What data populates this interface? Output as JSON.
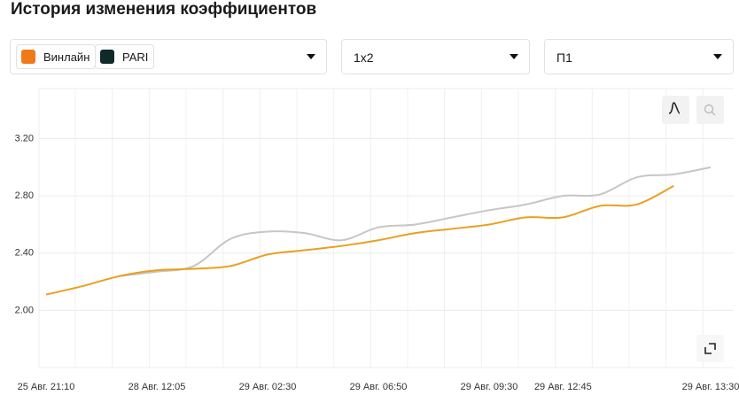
{
  "header": {
    "title": "История изменения коэффициентов"
  },
  "filters": {
    "market": "1x2",
    "outcome": "П1"
  },
  "chart_data": {
    "type": "line",
    "categories": [
      "25 Авг. 21:10",
      null,
      null,
      "28 Авг. 12:05",
      null,
      null,
      "29 Авг. 02:30",
      null,
      null,
      "29 Авг. 06:50",
      null,
      null,
      "29 Авг. 09:30",
      null,
      "29 Авг. 12:45",
      null,
      null,
      null,
      "29 Авг. 13:30"
    ],
    "series": [
      {
        "name": "Винлайн",
        "color": "#e9a021",
        "values": [
          2.11,
          2.17,
          2.24,
          2.28,
          2.29,
          2.31,
          2.39,
          2.42,
          2.45,
          2.49,
          2.54,
          2.57,
          2.6,
          2.65,
          2.65,
          2.73,
          2.74,
          2.87,
          null
        ]
      },
      {
        "name": "PARI",
        "color": "#c6c6c6",
        "values": [
          null,
          null,
          2.24,
          2.27,
          2.31,
          2.5,
          2.55,
          2.54,
          2.49,
          2.58,
          2.6,
          2.65,
          2.7,
          2.74,
          2.8,
          2.81,
          2.93,
          2.95,
          3.0
        ]
      }
    ],
    "ylim": [
      1.6,
      3.55
    ],
    "yticks": [
      {
        "value": 2.0,
        "label": "2.00"
      },
      {
        "value": 2.4,
        "label": "2.40"
      },
      {
        "value": 2.8,
        "label": "2.80"
      },
      {
        "value": 3.2,
        "label": "3.20"
      }
    ],
    "grid": true
  }
}
